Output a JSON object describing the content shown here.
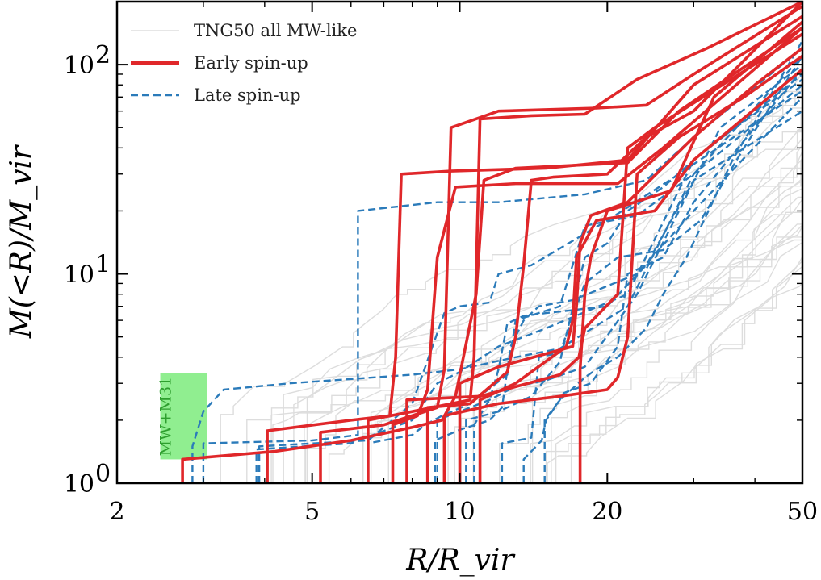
{
  "chart_data": {
    "type": "line",
    "xlabel": "R/R_vir",
    "ylabel": "M(<R)/M_vir",
    "xscale": "log",
    "yscale": "log",
    "xlim": [
      2,
      50
    ],
    "ylim": [
      1,
      200
    ],
    "x_ticks": [
      {
        "value": 2,
        "label": "2"
      },
      {
        "value": 5,
        "label": "5"
      },
      {
        "value": 10,
        "label": "10"
      },
      {
        "value": 20,
        "label": "20"
      },
      {
        "value": 50,
        "label": "50"
      }
    ],
    "y_ticks": [
      {
        "value": 1,
        "label": "10",
        "exp": "0"
      },
      {
        "value": 10,
        "label": "10",
        "exp": "1"
      },
      {
        "value": 100,
        "label": "10",
        "exp": "2"
      }
    ],
    "legend": {
      "position": "top-left",
      "entries": [
        {
          "label": "TNG50 all MW-like",
          "color": "#dddddd",
          "style": "solid"
        },
        {
          "label": "Early spin-up",
          "color": "#e0272a",
          "style": "solid"
        },
        {
          "label": "Late spin-up",
          "color": "#2b7bba",
          "style": "dashed"
        }
      ]
    },
    "shaded_region": {
      "label": "MW+M31",
      "color": "#90ee90",
      "x_range": [
        2.45,
        3.05
      ],
      "y_range": [
        1.3,
        3.35
      ]
    },
    "series": [
      {
        "group": "Early spin-up",
        "color": "#e0272a",
        "points": [
          [
            2.72,
            1.0
          ],
          [
            2.72,
            1.3
          ],
          [
            4.2,
            1.42
          ],
          [
            6.0,
            1.6
          ],
          [
            8.0,
            1.85
          ],
          [
            9.2,
            2.0
          ],
          [
            9.8,
            2.6
          ],
          [
            10.8,
            8.0
          ],
          [
            11.2,
            28
          ],
          [
            13.0,
            32
          ],
          [
            22,
            34
          ],
          [
            28,
            60
          ],
          [
            50,
            150
          ]
        ]
      },
      {
        "group": "Early spin-up",
        "color": "#e0272a",
        "points": [
          [
            4.05,
            1.0
          ],
          [
            4.05,
            1.78
          ],
          [
            6.0,
            2.0
          ],
          [
            7.2,
            2.1
          ],
          [
            7.4,
            4.0
          ],
          [
            7.6,
            30
          ],
          [
            9.6,
            31
          ],
          [
            15,
            32
          ],
          [
            22,
            35
          ],
          [
            30,
            80
          ],
          [
            50,
            170
          ]
        ]
      },
      {
        "group": "Early spin-up",
        "color": "#e0272a",
        "points": [
          [
            5.2,
            1.0
          ],
          [
            5.2,
            1.75
          ],
          [
            7.0,
            1.9
          ],
          [
            9.0,
            2.3
          ],
          [
            9.3,
            3.5
          ],
          [
            9.6,
            50
          ],
          [
            12,
            60
          ],
          [
            19,
            62
          ],
          [
            24,
            64
          ],
          [
            30,
            90
          ],
          [
            50,
            190
          ]
        ]
      },
      {
        "group": "Early spin-up",
        "color": "#e0272a",
        "points": [
          [
            6.5,
            1.0
          ],
          [
            6.5,
            2.0
          ],
          [
            8.0,
            2.2
          ],
          [
            10.5,
            2.5
          ],
          [
            10.7,
            4.0
          ],
          [
            11.0,
            55
          ],
          [
            14,
            57
          ],
          [
            18,
            58
          ],
          [
            23,
            85
          ],
          [
            32,
            120
          ],
          [
            50,
            200
          ]
        ]
      },
      {
        "group": "Early spin-up",
        "color": "#e0272a",
        "points": [
          [
            8.6,
            1.0
          ],
          [
            8.6,
            2.3
          ],
          [
            10.5,
            2.4
          ],
          [
            12.5,
            3.4
          ],
          [
            13.0,
            5.0
          ],
          [
            13.5,
            11
          ],
          [
            14,
            28
          ],
          [
            15.5,
            29
          ],
          [
            20,
            30
          ],
          [
            24,
            45
          ],
          [
            30,
            60
          ],
          [
            50,
            200
          ]
        ]
      },
      {
        "group": "Early spin-up",
        "color": "#e0272a",
        "points": [
          [
            7.8,
            1.0
          ],
          [
            7.8,
            2.5
          ],
          [
            11,
            2.6
          ],
          [
            16,
            3.3
          ],
          [
            17.5,
            4.0
          ],
          [
            18,
            5.5
          ],
          [
            21,
            8
          ],
          [
            22,
            40
          ],
          [
            25,
            50
          ],
          [
            50,
            140
          ]
        ]
      },
      {
        "group": "Early spin-up",
        "color": "#e0272a",
        "points": [
          [
            9.3,
            1.0
          ],
          [
            9.3,
            2.1
          ],
          [
            12,
            2.4
          ],
          [
            16,
            2.6
          ],
          [
            20,
            2.8
          ],
          [
            21,
            3.2
          ],
          [
            22,
            5
          ],
          [
            23,
            30
          ],
          [
            28,
            45
          ],
          [
            38,
            70
          ],
          [
            50,
            110
          ]
        ]
      },
      {
        "group": "Early spin-up",
        "color": "#e0272a",
        "points": [
          [
            10.0,
            1.0
          ],
          [
            10.0,
            3.0
          ],
          [
            12,
            3.6
          ],
          [
            17,
            4.5
          ],
          [
            17.3,
            7
          ],
          [
            17.6,
            14
          ],
          [
            18.5,
            19
          ],
          [
            22,
            22
          ],
          [
            30,
            45
          ],
          [
            40,
            80
          ],
          [
            50,
            120
          ]
        ]
      },
      {
        "group": "Early spin-up",
        "color": "#e0272a",
        "points": [
          [
            11.0,
            1.0
          ],
          [
            11.0,
            2.5
          ],
          [
            13,
            3.0
          ],
          [
            16.5,
            4.5
          ],
          [
            17.0,
            6
          ],
          [
            17.3,
            12
          ],
          [
            19,
            18
          ],
          [
            25,
            20
          ],
          [
            30,
            35
          ],
          [
            50,
            95
          ]
        ]
      },
      {
        "group": "Early spin-up",
        "color": "#e0272a",
        "points": [
          [
            17.6,
            1.0
          ],
          [
            17.6,
            3.5
          ],
          [
            18.0,
            8
          ],
          [
            18.5,
            12
          ],
          [
            20,
            20
          ],
          [
            27,
            25
          ],
          [
            33,
            70
          ],
          [
            50,
            160
          ]
        ]
      },
      {
        "group": "Early spin-up",
        "color": "#e0272a",
        "points": [
          [
            7.3,
            1.0
          ],
          [
            7.3,
            1.9
          ],
          [
            8.2,
            2.1
          ],
          [
            8.6,
            2.8
          ],
          [
            9.0,
            12
          ],
          [
            9.8,
            26
          ],
          [
            13,
            27
          ],
          [
            21,
            27
          ],
          [
            26,
            40
          ],
          [
            50,
            150
          ]
        ]
      },
      {
        "group": "Late spin-up",
        "color": "#2b7bba",
        "points": [
          [
            2.85,
            1.0
          ],
          [
            2.85,
            1.5
          ],
          [
            3.0,
            2.2
          ],
          [
            3.3,
            2.8
          ],
          [
            4.5,
            3.0
          ],
          [
            8,
            3.3
          ],
          [
            10,
            3.5
          ],
          [
            13,
            4.0
          ],
          [
            16,
            4.4
          ],
          [
            22,
            7
          ],
          [
            30,
            30
          ],
          [
            50,
            80
          ]
        ]
      },
      {
        "group": "Late spin-up",
        "color": "#2b7bba",
        "points": [
          [
            3.0,
            1.0
          ],
          [
            3.0,
            1.55
          ],
          [
            5,
            1.6
          ],
          [
            6.2,
            1.7
          ],
          [
            6.2,
            20
          ],
          [
            9,
            22
          ],
          [
            12,
            22
          ],
          [
            18,
            24
          ],
          [
            24,
            28
          ],
          [
            30,
            45
          ],
          [
            50,
            120
          ]
        ]
      },
      {
        "group": "Late spin-up",
        "color": "#2b7bba",
        "points": [
          [
            3.85,
            1.0
          ],
          [
            3.85,
            1.45
          ],
          [
            6,
            1.55
          ],
          [
            8,
            2.0
          ],
          [
            9,
            3.0
          ],
          [
            10,
            3.4
          ],
          [
            12,
            4.5
          ],
          [
            15,
            5.5
          ],
          [
            22,
            8
          ],
          [
            30,
            35
          ],
          [
            50,
            90
          ]
        ]
      },
      {
        "group": "Late spin-up",
        "color": "#2b7bba",
        "points": [
          [
            3.9,
            1.0
          ],
          [
            3.9,
            1.5
          ],
          [
            6.5,
            1.6
          ],
          [
            8,
            2.4
          ],
          [
            9.3,
            6.5
          ],
          [
            10,
            7
          ],
          [
            11.5,
            7.3
          ],
          [
            12,
            10
          ],
          [
            14,
            11
          ],
          [
            20,
            18
          ],
          [
            28,
            30
          ],
          [
            50,
            75
          ]
        ]
      },
      {
        "group": "Late spin-up",
        "color": "#2b7bba",
        "points": [
          [
            6.5,
            1.0
          ],
          [
            6.5,
            1.55
          ],
          [
            8,
            1.7
          ],
          [
            8.5,
            1.9
          ],
          [
            9.2,
            2.1
          ],
          [
            10.5,
            2.4
          ],
          [
            12.5,
            3.3
          ],
          [
            13,
            6
          ],
          [
            16,
            7
          ],
          [
            18,
            17
          ],
          [
            23,
            19
          ],
          [
            30,
            30
          ],
          [
            50,
            110
          ]
        ]
      },
      {
        "group": "Late spin-up",
        "color": "#2b7bba",
        "points": [
          [
            8.9,
            1.0
          ],
          [
            8.9,
            1.6
          ],
          [
            10,
            1.8
          ],
          [
            11.5,
            2.0
          ],
          [
            12.2,
            2.3
          ],
          [
            12.7,
            4.5
          ],
          [
            13.5,
            6.0
          ],
          [
            14.5,
            7.0
          ],
          [
            17,
            7.5
          ],
          [
            23,
            10
          ],
          [
            30,
            20
          ],
          [
            50,
            70
          ]
        ]
      },
      {
        "group": "Late spin-up",
        "color": "#2b7bba",
        "points": [
          [
            10.7,
            1.0
          ],
          [
            10.7,
            1.9
          ],
          [
            11.5,
            2.5
          ],
          [
            12,
            3.5
          ],
          [
            12.5,
            5.8
          ],
          [
            13.5,
            6.3
          ],
          [
            15,
            6.5
          ],
          [
            20,
            7
          ],
          [
            24,
            11
          ],
          [
            30,
            28
          ],
          [
            50,
            60
          ]
        ]
      },
      {
        "group": "Late spin-up",
        "color": "#2b7bba",
        "points": [
          [
            12.2,
            1.0
          ],
          [
            12.2,
            1.55
          ],
          [
            14,
            1.65
          ],
          [
            14.5,
            4.0
          ],
          [
            16,
            4.2
          ],
          [
            18,
            9
          ],
          [
            21,
            12
          ],
          [
            26,
            13
          ],
          [
            31,
            18
          ],
          [
            38,
            40
          ],
          [
            50,
            110
          ]
        ]
      },
      {
        "group": "Late spin-up",
        "color": "#2b7bba",
        "points": [
          [
            13.5,
            1.0
          ],
          [
            13.5,
            1.3
          ],
          [
            14.7,
            1.6
          ],
          [
            15,
            2.0
          ],
          [
            16,
            2.5
          ],
          [
            16.3,
            2.7
          ],
          [
            18.5,
            3.0
          ],
          [
            21,
            4.5
          ],
          [
            22,
            10
          ],
          [
            26,
            12
          ],
          [
            30,
            22
          ],
          [
            50,
            95
          ]
        ]
      },
      {
        "group": "Late spin-up",
        "color": "#2b7bba",
        "points": [
          [
            14.9,
            1.0
          ],
          [
            14.9,
            2.0
          ],
          [
            16,
            2.5
          ],
          [
            18,
            3.2
          ],
          [
            19,
            3.5
          ],
          [
            21,
            4.0
          ],
          [
            24,
            5.5
          ],
          [
            26,
            8
          ],
          [
            29,
            12
          ],
          [
            36,
            35
          ],
          [
            50,
            130
          ]
        ]
      },
      {
        "group": "Late spin-up",
        "color": "#2b7bba",
        "points": [
          [
            9.0,
            1.0
          ],
          [
            9.0,
            2.0
          ],
          [
            10,
            2.2
          ],
          [
            11.5,
            2.5
          ],
          [
            13,
            2.9
          ],
          [
            15,
            3.1
          ],
          [
            18,
            3.6
          ],
          [
            23,
            8
          ],
          [
            28,
            20
          ],
          [
            34,
            50
          ],
          [
            50,
            100
          ]
        ]
      },
      {
        "group": "Late spin-up",
        "color": "#2b7bba",
        "points": [
          [
            10.3,
            1.0
          ],
          [
            10.3,
            2.0
          ],
          [
            12,
            2.2
          ],
          [
            14,
            2.6
          ],
          [
            16,
            3.8
          ],
          [
            18,
            12
          ],
          [
            20,
            14
          ],
          [
            22,
            20
          ],
          [
            26,
            26
          ],
          [
            32,
            40
          ],
          [
            50,
            85
          ]
        ]
      }
    ]
  }
}
